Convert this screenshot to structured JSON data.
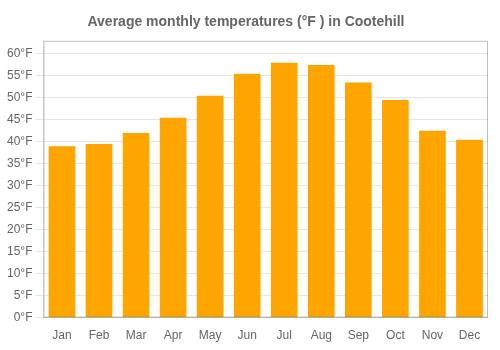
{
  "chart_data": {
    "type": "bar",
    "title": "Average monthly temperatures (°F ) in Cootehill",
    "categories": [
      "Jan",
      "Feb",
      "Mar",
      "Apr",
      "May",
      "Jun",
      "Jul",
      "Aug",
      "Sep",
      "Oct",
      "Nov",
      "Dec"
    ],
    "values": [
      39,
      39.5,
      42,
      45.5,
      50.5,
      55.5,
      58,
      57.5,
      53.5,
      49.5,
      42.5,
      40.5
    ],
    "color": "#FFA500",
    "ylim": [
      0,
      63
    ],
    "yticks": [
      {
        "value": 0,
        "label": "0°F"
      },
      {
        "value": 5,
        "label": "5°F"
      },
      {
        "value": 10,
        "label": "10°F"
      },
      {
        "value": 15,
        "label": "15°F"
      },
      {
        "value": 20,
        "label": "20°F"
      },
      {
        "value": 25,
        "label": "25°F"
      },
      {
        "value": 30,
        "label": "30°F"
      },
      {
        "value": 35,
        "label": "35°F"
      },
      {
        "value": 40,
        "label": "40°F"
      },
      {
        "value": 45,
        "label": "45°F"
      },
      {
        "value": 50,
        "label": "50°F"
      },
      {
        "value": 55,
        "label": "55°F"
      },
      {
        "value": 60,
        "label": "60°F"
      }
    ],
    "grid": true
  }
}
